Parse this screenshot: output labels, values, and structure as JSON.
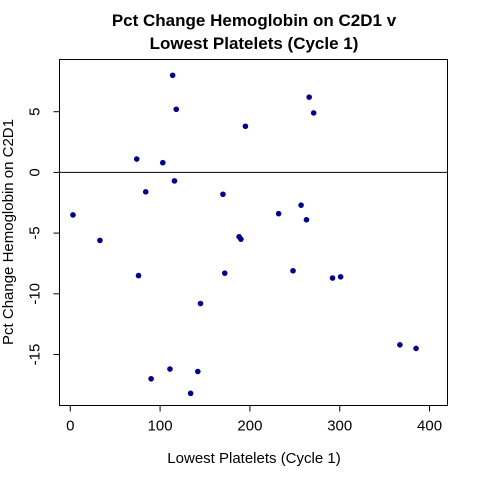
{
  "chart_data": {
    "type": "scatter",
    "title": [
      "Pct Change Hemoglobin on C2D1 v",
      "Lowest Platelets (Cycle 1)"
    ],
    "xlabel": "Lowest Platelets (Cycle 1)",
    "ylabel": "Pct Change Hemoglobin on C2D1",
    "xlim": [
      -12,
      420
    ],
    "ylim": [
      -19.2,
      9.3
    ],
    "xticks": [
      0,
      100,
      200,
      300,
      400
    ],
    "yticks": [
      -15,
      -10,
      -5,
      0,
      5
    ],
    "reference_line_y": 0,
    "point_color": "#00008b",
    "points": [
      {
        "x": 3,
        "y": -3.5
      },
      {
        "x": 33,
        "y": -5.6
      },
      {
        "x": 74,
        "y": 1.1
      },
      {
        "x": 76,
        "y": -8.5
      },
      {
        "x": 84,
        "y": -1.6
      },
      {
        "x": 90,
        "y": -17.0
      },
      {
        "x": 103,
        "y": 0.8
      },
      {
        "x": 111,
        "y": -16.2
      },
      {
        "x": 114,
        "y": 8.0
      },
      {
        "x": 116,
        "y": -0.7
      },
      {
        "x": 118,
        "y": 5.2
      },
      {
        "x": 134,
        "y": -18.2
      },
      {
        "x": 142,
        "y": -16.4
      },
      {
        "x": 145,
        "y": -10.8
      },
      {
        "x": 170,
        "y": -1.8
      },
      {
        "x": 172,
        "y": -8.3
      },
      {
        "x": 188,
        "y": -5.3
      },
      {
        "x": 190,
        "y": -5.5
      },
      {
        "x": 195,
        "y": 3.8
      },
      {
        "x": 232,
        "y": -3.4
      },
      {
        "x": 248,
        "y": -8.1
      },
      {
        "x": 257,
        "y": -2.7
      },
      {
        "x": 263,
        "y": -3.9
      },
      {
        "x": 266,
        "y": 6.2
      },
      {
        "x": 271,
        "y": 4.9
      },
      {
        "x": 292,
        "y": -8.7
      },
      {
        "x": 301,
        "y": -8.6
      },
      {
        "x": 367,
        "y": -14.2
      },
      {
        "x": 385,
        "y": -14.5
      }
    ]
  }
}
